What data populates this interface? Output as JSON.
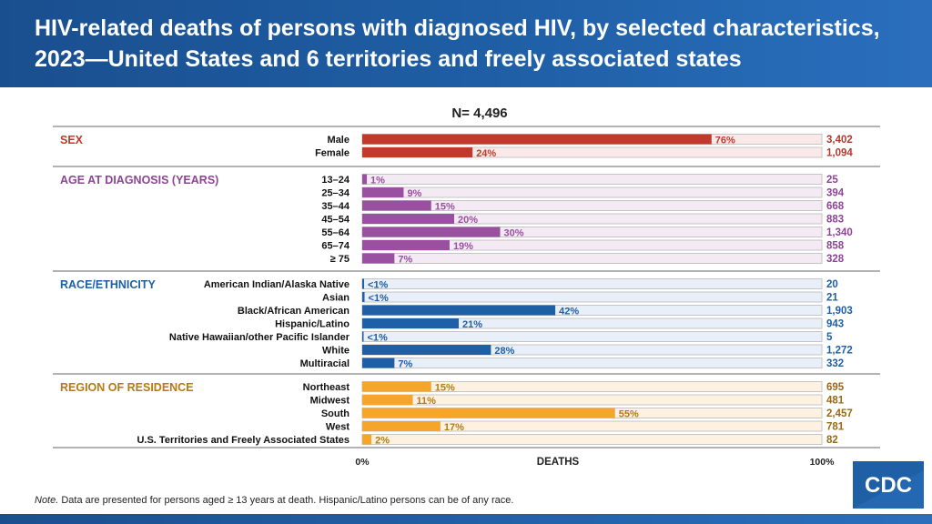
{
  "header": {
    "title": "HIV-related deaths of persons with diagnosed HIV, by selected characteristics, 2023—United States and 6 territories and freely associated states"
  },
  "footer": {
    "note_label": "Note.",
    "note_text": " Data are presented for persons aged ≥ 13 years at death. Hispanic/Latino persons can be of any race."
  },
  "logo": {
    "text": "CDC"
  },
  "chart_data": {
    "type": "bar",
    "orientation": "horizontal",
    "total_label": "N= 4,496",
    "xlabel": "DEATHS",
    "x_ticks": [
      "0%",
      "100%"
    ],
    "xlim": [
      0,
      100
    ],
    "groups": [
      {
        "name": "SEX",
        "color": "#c0392b",
        "bg": "#fbe9ea",
        "categories": [
          "Male",
          "Female"
        ],
        "percents": [
          76,
          24
        ],
        "pct_labels": [
          "76%",
          "24%"
        ],
        "counts": [
          "3,402",
          "1,094"
        ]
      },
      {
        "name": "AGE AT DIAGNOSIS (YEARS)",
        "color": "#9b4fa0",
        "bg": "#f3eaf4",
        "categories": [
          "13–24",
          "25–34",
          "35–44",
          "45–54",
          "55–64",
          "65–74",
          "≥ 75"
        ],
        "percents": [
          1,
          9,
          15,
          20,
          30,
          19,
          7
        ],
        "pct_labels": [
          "1%",
          "9%",
          "15%",
          "20%",
          "30%",
          "19%",
          "7%"
        ],
        "counts": [
          "25",
          "394",
          "668",
          "883",
          "1,340",
          "858",
          "328"
        ]
      },
      {
        "name": "RACE/ETHNICITY",
        "color": "#1f5fa6",
        "bg": "#e8eff8",
        "categories": [
          "American Indian/Alaska Native",
          "Asian",
          "Black/African American",
          "Hispanic/Latino",
          "Native Hawaiian/other Pacific Islander",
          "White",
          "Multiracial"
        ],
        "percents": [
          0.4,
          0.5,
          42,
          21,
          0.1,
          28,
          7
        ],
        "pct_labels": [
          "<1%",
          "<1%",
          "42%",
          "21%",
          "<1%",
          "28%",
          "7%"
        ],
        "counts": [
          "20",
          "21",
          "1,903",
          "943",
          "5",
          "1,272",
          "332"
        ]
      },
      {
        "name": "REGION OF RESIDENCE",
        "color": "#f4a52a",
        "bg": "#fdf2e2",
        "categories": [
          "Northeast",
          "Midwest",
          "South",
          "West",
          "U.S. Territories and Freely Associated States"
        ],
        "percents": [
          15,
          11,
          55,
          17,
          2
        ],
        "pct_labels": [
          "15%",
          "11%",
          "55%",
          "17%",
          "2%"
        ],
        "counts": [
          "695",
          "481",
          "2,457",
          "781",
          "82"
        ]
      }
    ]
  }
}
